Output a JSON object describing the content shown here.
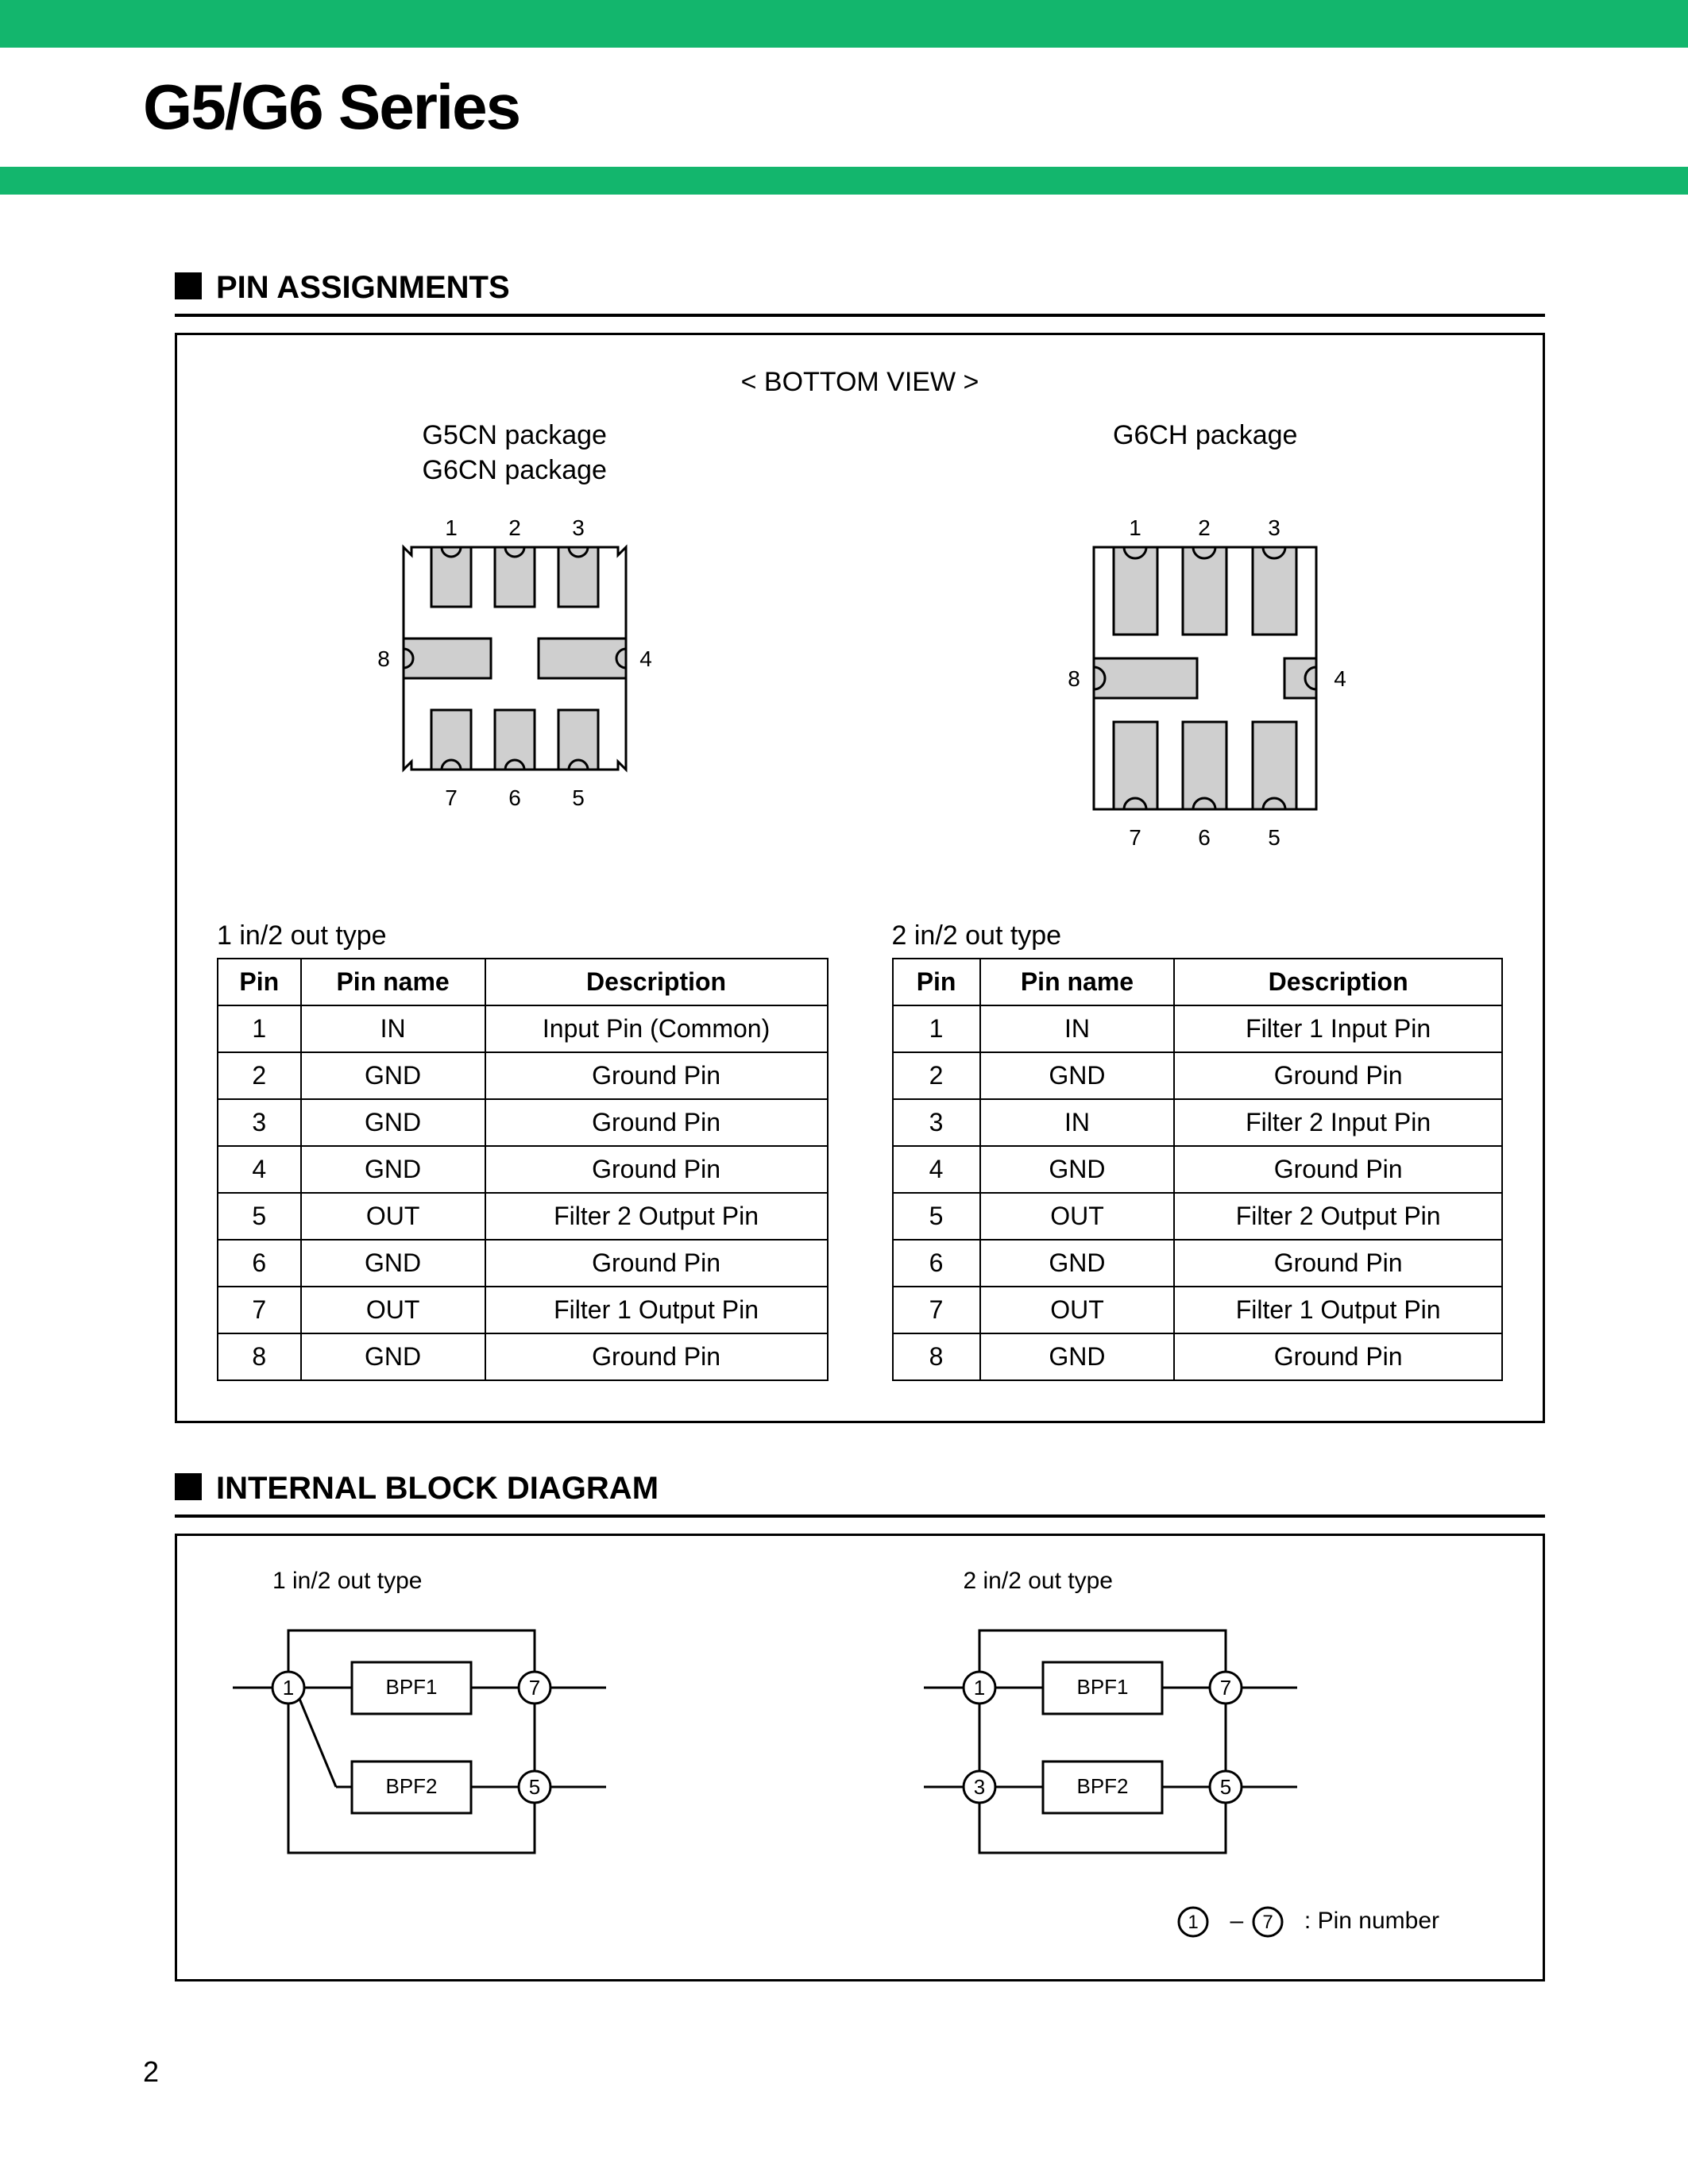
{
  "header": {
    "title": "G5/G6 Series",
    "top_bar_color": "#13b66d",
    "under_bar_color": "#13b66d"
  },
  "section_pin": {
    "title": "PIN ASSIGNMENTS",
    "bottom_view": "< BOTTOM VIEW >",
    "pkg_left_label_1": "G5CN package",
    "pkg_left_label_2": "G6CN package",
    "pkg_right_label": "G6CH package",
    "pkg_left": {
      "pins_top": [
        "1",
        "2",
        "3"
      ],
      "pins_bottom": [
        "7",
        "6",
        "5"
      ],
      "pin_left": "8",
      "pin_right": "4",
      "outline_color": "#000000",
      "pad_fill": "#cfcfcf"
    },
    "pkg_right": {
      "pins_top": [
        "1",
        "2",
        "3"
      ],
      "pins_bottom": [
        "7",
        "6",
        "5"
      ],
      "pin_left": "8",
      "pin_right": "4",
      "outline_color": "#000000",
      "pad_fill": "#cfcfcf"
    }
  },
  "table_left": {
    "caption": "1 in/2 out type",
    "columns": [
      "Pin",
      "Pin name",
      "Description"
    ],
    "rows": [
      [
        "1",
        "IN",
        "Input Pin (Common)"
      ],
      [
        "2",
        "GND",
        "Ground Pin"
      ],
      [
        "3",
        "GND",
        "Ground Pin"
      ],
      [
        "4",
        "GND",
        "Ground Pin"
      ],
      [
        "5",
        "OUT",
        "Filter 2 Output Pin"
      ],
      [
        "6",
        "GND",
        "Ground Pin"
      ],
      [
        "7",
        "OUT",
        "Filter 1 Output Pin"
      ],
      [
        "8",
        "GND",
        "Ground Pin"
      ]
    ]
  },
  "table_right": {
    "caption": "2 in/2 out type",
    "columns": [
      "Pin",
      "Pin name",
      "Description"
    ],
    "rows": [
      [
        "1",
        "IN",
        "Filter 1 Input Pin"
      ],
      [
        "2",
        "GND",
        "Ground Pin"
      ],
      [
        "3",
        "IN",
        "Filter 2 Input Pin"
      ],
      [
        "4",
        "GND",
        "Ground Pin"
      ],
      [
        "5",
        "OUT",
        "Filter 2 Output Pin"
      ],
      [
        "6",
        "GND",
        "Ground Pin"
      ],
      [
        "7",
        "OUT",
        "Filter 1 Output Pin"
      ],
      [
        "8",
        "GND",
        "Ground Pin"
      ]
    ]
  },
  "section_block": {
    "title": "INTERNAL BLOCK DIAGRAM",
    "left_caption": "1 in/2 out type",
    "right_caption": "2 in/2 out type",
    "block_labels": {
      "bpf1": "BPF1",
      "bpf2": "BPF2"
    },
    "left_pins": {
      "in": "1",
      "out1": "7",
      "out2": "5"
    },
    "right_pins": {
      "in1": "1",
      "in2": "3",
      "out1": "7",
      "out2": "5"
    },
    "legend_a": "1",
    "legend_b": "7",
    "legend_text": ": Pin number",
    "stroke": "#000000",
    "fill": "#ffffff"
  },
  "page_number": "2"
}
